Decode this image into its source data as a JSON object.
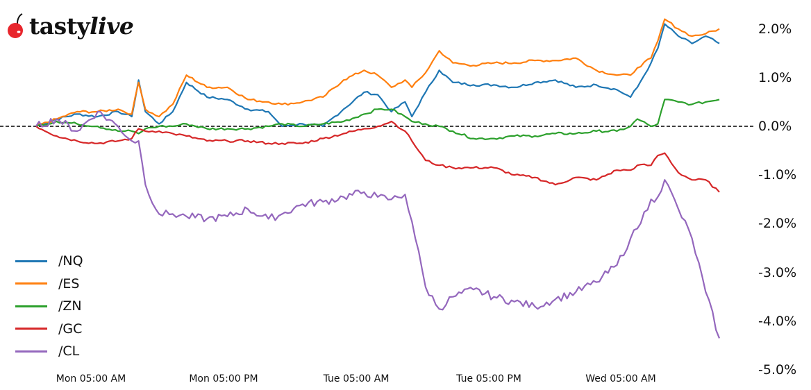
{
  "brand": {
    "name_part1": "tasty",
    "name_part2": "live",
    "icon": "cherry-icon",
    "icon_color": "#e8262d"
  },
  "chart_data": {
    "type": "line",
    "title": "",
    "xlabel": "",
    "ylabel": "",
    "ylim": [
      -5.0,
      2.3
    ],
    "grid": false,
    "legend_position": "lower left",
    "reference_line": {
      "y": 0.0,
      "style": "dashed",
      "color": "#000000"
    },
    "y_ticks": [
      "2.0%",
      "1.0%",
      "0.0%",
      "-1.0%",
      "-2.0%",
      "-3.0%",
      "-4.0%",
      "-5.0%"
    ],
    "x_ticks": [
      "Mon 05:00 AM",
      "Mon 05:00 PM",
      "Tue 05:00 AM",
      "Tue 05:00 PM",
      "Wed 05:00 AM"
    ],
    "x": [
      0,
      0.03,
      0.06,
      0.09,
      0.12,
      0.14,
      0.15,
      0.16,
      0.18,
      0.2,
      0.22,
      0.25,
      0.28,
      0.31,
      0.34,
      0.36,
      0.39,
      0.42,
      0.45,
      0.48,
      0.5,
      0.52,
      0.54,
      0.55,
      0.57,
      0.59,
      0.61,
      0.64,
      0.67,
      0.7,
      0.73,
      0.76,
      0.79,
      0.82,
      0.85,
      0.87,
      0.88,
      0.9,
      0.91,
      0.92,
      0.94,
      0.96,
      0.98,
      1.0
    ],
    "series": [
      {
        "name": "/NQ",
        "color": "#1f77b4",
        "values": [
          0,
          0.15,
          0.25,
          0.2,
          0.3,
          0.2,
          0.95,
          0.3,
          0.05,
          0.3,
          0.9,
          0.6,
          0.55,
          0.35,
          0.3,
          0.0,
          0.05,
          0.0,
          0.35,
          0.7,
          0.65,
          0.3,
          0.5,
          0.2,
          0.7,
          1.15,
          0.9,
          0.85,
          0.85,
          0.8,
          0.9,
          0.95,
          0.8,
          0.85,
          0.75,
          0.6,
          0.8,
          1.3,
          1.6,
          2.1,
          1.85,
          1.7,
          1.85,
          1.7
        ]
      },
      {
        "name": "/ES",
        "color": "#ff7f0e",
        "values": [
          0,
          0.15,
          0.3,
          0.3,
          0.35,
          0.25,
          0.9,
          0.35,
          0.2,
          0.45,
          1.05,
          0.8,
          0.8,
          0.55,
          0.5,
          0.45,
          0.5,
          0.6,
          0.95,
          1.15,
          1.05,
          0.8,
          0.95,
          0.8,
          1.1,
          1.55,
          1.3,
          1.25,
          1.3,
          1.3,
          1.35,
          1.35,
          1.4,
          1.15,
          1.05,
          1.05,
          1.2,
          1.4,
          1.75,
          2.2,
          2.0,
          1.85,
          1.9,
          2.0
        ]
      },
      {
        "name": "/ZN",
        "color": "#2ca02c",
        "values": [
          0,
          0.1,
          0.05,
          0.0,
          -0.1,
          -0.1,
          -0.15,
          -0.05,
          0.0,
          0.0,
          0.05,
          -0.05,
          -0.05,
          -0.05,
          0.0,
          0.05,
          0.0,
          0.05,
          0.1,
          0.25,
          0.35,
          0.35,
          0.2,
          0.1,
          0.05,
          0.0,
          -0.1,
          -0.25,
          -0.25,
          -0.2,
          -0.2,
          -0.15,
          -0.15,
          -0.1,
          -0.1,
          0.0,
          0.15,
          0.0,
          0.05,
          0.55,
          0.5,
          0.45,
          0.5,
          0.55
        ]
      },
      {
        "name": "/GC",
        "color": "#d62728",
        "values": [
          0,
          -0.2,
          -0.3,
          -0.35,
          -0.3,
          -0.25,
          -0.05,
          -0.1,
          -0.1,
          -0.15,
          -0.2,
          -0.3,
          -0.3,
          -0.3,
          -0.35,
          -0.35,
          -0.35,
          -0.25,
          -0.15,
          -0.05,
          0.0,
          0.1,
          -0.1,
          -0.3,
          -0.7,
          -0.8,
          -0.85,
          -0.85,
          -0.85,
          -1.0,
          -1.05,
          -1.2,
          -1.05,
          -1.1,
          -0.9,
          -0.9,
          -0.8,
          -0.8,
          -0.6,
          -0.55,
          -0.95,
          -1.1,
          -1.1,
          -1.35
        ]
      },
      {
        "name": "/CL",
        "color": "#9467bd",
        "values": [
          0,
          0.15,
          -0.1,
          0.3,
          0.0,
          -0.3,
          -0.3,
          -1.2,
          -1.8,
          -1.8,
          -1.85,
          -1.9,
          -1.85,
          -1.7,
          -1.9,
          -1.8,
          -1.6,
          -1.55,
          -1.45,
          -1.35,
          -1.45,
          -1.5,
          -1.4,
          -1.95,
          -3.3,
          -3.75,
          -3.5,
          -3.35,
          -3.5,
          -3.6,
          -3.7,
          -3.55,
          -3.4,
          -3.2,
          -2.85,
          -2.3,
          -2.1,
          -1.5,
          -1.45,
          -1.1,
          -1.7,
          -2.3,
          -3.4,
          -4.35
        ]
      }
    ]
  }
}
